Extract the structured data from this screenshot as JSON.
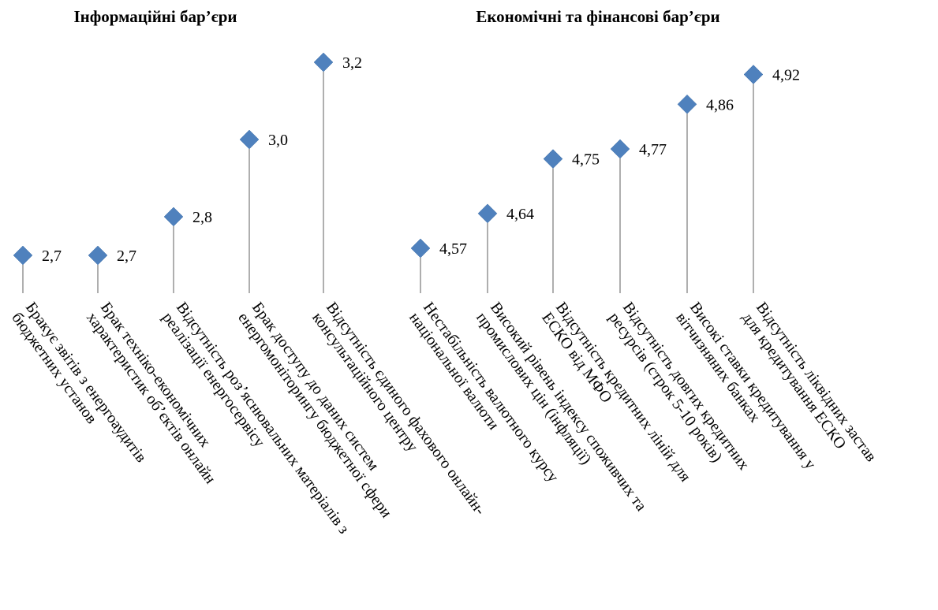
{
  "chart_data": {
    "type": "scatter",
    "style": "lollipop",
    "marker": "diamond",
    "marker_color": "#4f81bd",
    "stem_color": "#a6a6a6",
    "groups": [
      {
        "title": "Інформаційні  бар’єри",
        "points": [
          {
            "value": 2.7,
            "value_label": "2,7",
            "label_lines": [
              "Бракує звітів з енергоаудитів",
              "бюджетних установ"
            ]
          },
          {
            "value": 2.7,
            "value_label": "2,7",
            "label_lines": [
              "Брак техніко-економічних",
              "характеристик об’єктів онлайн"
            ]
          },
          {
            "value": 2.8,
            "value_label": "2,8",
            "label_lines": [
              "Відсутність роз’яснювальних матеріалів з",
              "реалізації  енергосервісу"
            ]
          },
          {
            "value": 3.0,
            "value_label": "3,0",
            "label_lines": [
              "Брак доступу до даних систем",
              "енергомоніторингу бюджетної сфери"
            ]
          },
          {
            "value": 3.2,
            "value_label": "3,2",
            "label_lines": [
              "Відсутність єдиного фахового онлайн-",
              "консультаційного центру"
            ]
          }
        ]
      },
      {
        "title": "Економічні та фінансові бар’єри",
        "points": [
          {
            "value": 4.57,
            "value_label": "4,57",
            "label_lines": [
              "Нестабільність валютного курсу",
              "національної валюти"
            ]
          },
          {
            "value": 4.64,
            "value_label": "4,64",
            "label_lines": [
              "Високий рівень індексу споживчих та",
              "промислових цін (інфляції)"
            ]
          },
          {
            "value": 4.75,
            "value_label": "4,75",
            "label_lines": [
              "Відсутність кредитних ліній для",
              "ЕСКО від МФО"
            ]
          },
          {
            "value": 4.77,
            "value_label": "4,77",
            "label_lines": [
              "Відсутність довгих кредитних",
              "ресурсів  (строк 5-10 років)"
            ]
          },
          {
            "value": 4.86,
            "value_label": "4,86",
            "label_lines": [
              "Високі ставки кредитування  у",
              "вітчизняних банках"
            ]
          },
          {
            "value": 4.92,
            "value_label": "4,92",
            "label_lines": [
              "Відсутність ліквідних застав",
              "для кредитування ЕСКО"
            ]
          }
        ]
      }
    ]
  }
}
